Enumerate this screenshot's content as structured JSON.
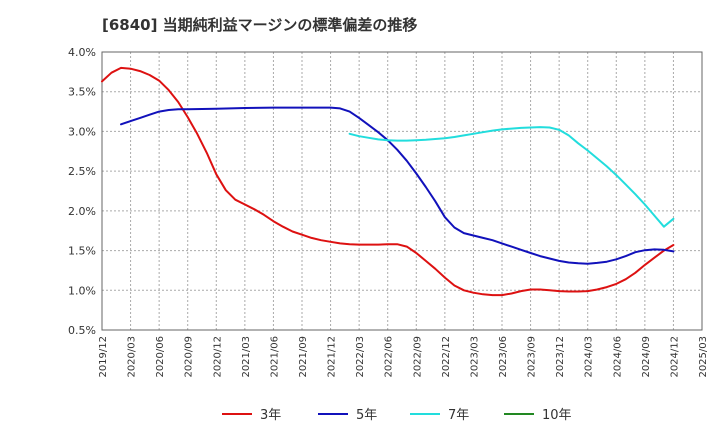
{
  "chart_data": {
    "type": "line",
    "title": "[6840]  当期純利益マージンの標準偏差の推移",
    "xlabel": "",
    "ylabel": "",
    "y_unit": "%",
    "ylim": [
      0.5,
      4.0
    ],
    "y_ticks": [
      0.5,
      1.0,
      1.5,
      2.0,
      2.5,
      3.0,
      3.5,
      4.0
    ],
    "y_tick_labels": [
      "0.5%",
      "1.0%",
      "1.5%",
      "2.0%",
      "2.5%",
      "3.0%",
      "3.5%",
      "4.0%"
    ],
    "x_ticks": [
      "2019/12",
      "2020/03",
      "2020/06",
      "2020/09",
      "2020/12",
      "2021/03",
      "2021/06",
      "2021/09",
      "2021/12",
      "2022/03",
      "2022/06",
      "2022/09",
      "2022/12",
      "2023/03",
      "2023/06",
      "2023/09",
      "2023/12",
      "2024/03",
      "2024/06",
      "2024/09",
      "2024/12",
      "2025/03"
    ],
    "grid": true,
    "legend_position": "bottom",
    "series": [
      {
        "name": "3年",
        "color": "#dd1111",
        "points": [
          [
            "2019/12",
            3.63
          ],
          [
            "2020/01",
            3.74
          ],
          [
            "2020/02",
            3.8
          ],
          [
            "2020/03",
            3.79
          ],
          [
            "2020/04",
            3.76
          ],
          [
            "2020/05",
            3.71
          ],
          [
            "2020/06",
            3.64
          ],
          [
            "2020/07",
            3.52
          ],
          [
            "2020/08",
            3.37
          ],
          [
            "2020/09",
            3.18
          ],
          [
            "2020/10",
            2.97
          ],
          [
            "2020/11",
            2.73
          ],
          [
            "2020/12",
            2.46
          ],
          [
            "2021/01",
            2.26
          ],
          [
            "2021/02",
            2.14
          ],
          [
            "2021/03",
            2.08
          ],
          [
            "2021/04",
            2.02
          ],
          [
            "2021/05",
            1.95
          ],
          [
            "2021/06",
            1.87
          ],
          [
            "2021/07",
            1.8
          ],
          [
            "2021/08",
            1.74
          ],
          [
            "2021/09",
            1.7
          ],
          [
            "2021/10",
            1.66
          ],
          [
            "2021/11",
            1.63
          ],
          [
            "2021/12",
            1.61
          ],
          [
            "2022/01",
            1.59
          ],
          [
            "2022/02",
            1.58
          ],
          [
            "2022/03",
            1.575
          ],
          [
            "2022/04",
            1.575
          ],
          [
            "2022/05",
            1.575
          ],
          [
            "2022/06",
            1.58
          ],
          [
            "2022/07",
            1.58
          ],
          [
            "2022/08",
            1.55
          ],
          [
            "2022/09",
            1.47
          ],
          [
            "2022/10",
            1.37
          ],
          [
            "2022/11",
            1.27
          ],
          [
            "2022/12",
            1.16
          ],
          [
            "2023/01",
            1.06
          ],
          [
            "2023/02",
            1.0
          ],
          [
            "2023/03",
            0.97
          ],
          [
            "2023/04",
            0.95
          ],
          [
            "2023/05",
            0.94
          ],
          [
            "2023/06",
            0.94
          ],
          [
            "2023/07",
            0.96
          ],
          [
            "2023/08",
            0.99
          ],
          [
            "2023/09",
            1.01
          ],
          [
            "2023/10",
            1.01
          ],
          [
            "2023/11",
            1.0
          ],
          [
            "2023/12",
            0.99
          ],
          [
            "2024/01",
            0.985
          ],
          [
            "2024/02",
            0.985
          ],
          [
            "2024/03",
            0.99
          ],
          [
            "2024/04",
            1.01
          ],
          [
            "2024/05",
            1.04
          ],
          [
            "2024/06",
            1.08
          ],
          [
            "2024/07",
            1.14
          ],
          [
            "2024/08",
            1.22
          ],
          [
            "2024/09",
            1.32
          ],
          [
            "2024/10",
            1.41
          ],
          [
            "2024/11",
            1.5
          ],
          [
            "2024/12",
            1.57
          ]
        ]
      },
      {
        "name": "5年",
        "color": "#1111bb",
        "points": [
          [
            "2020/02",
            3.09
          ],
          [
            "2020/03",
            3.13
          ],
          [
            "2020/04",
            3.17
          ],
          [
            "2020/05",
            3.21
          ],
          [
            "2020/06",
            3.25
          ],
          [
            "2020/07",
            3.27
          ],
          [
            "2020/08",
            3.28
          ],
          [
            "2020/09",
            3.28
          ],
          [
            "2020/12",
            3.285
          ],
          [
            "2021/03",
            3.295
          ],
          [
            "2021/06",
            3.3
          ],
          [
            "2021/09",
            3.3
          ],
          [
            "2021/12",
            3.3
          ],
          [
            "2022/01",
            3.29
          ],
          [
            "2022/02",
            3.25
          ],
          [
            "2022/03",
            3.17
          ],
          [
            "2022/04",
            3.08
          ],
          [
            "2022/05",
            2.99
          ],
          [
            "2022/06",
            2.89
          ],
          [
            "2022/07",
            2.77
          ],
          [
            "2022/08",
            2.63
          ],
          [
            "2022/09",
            2.47
          ],
          [
            "2022/10",
            2.3
          ],
          [
            "2022/11",
            2.12
          ],
          [
            "2022/12",
            1.92
          ],
          [
            "2023/01",
            1.79
          ],
          [
            "2023/02",
            1.72
          ],
          [
            "2023/03",
            1.69
          ],
          [
            "2023/04",
            1.66
          ],
          [
            "2023/05",
            1.63
          ],
          [
            "2023/06",
            1.59
          ],
          [
            "2023/07",
            1.55
          ],
          [
            "2023/08",
            1.51
          ],
          [
            "2023/09",
            1.47
          ],
          [
            "2023/10",
            1.43
          ],
          [
            "2023/11",
            1.4
          ],
          [
            "2023/12",
            1.37
          ],
          [
            "2024/01",
            1.35
          ],
          [
            "2024/02",
            1.34
          ],
          [
            "2024/03",
            1.335
          ],
          [
            "2024/04",
            1.345
          ],
          [
            "2024/05",
            1.36
          ],
          [
            "2024/06",
            1.39
          ],
          [
            "2024/07",
            1.43
          ],
          [
            "2024/08",
            1.48
          ],
          [
            "2024/09",
            1.505
          ],
          [
            "2024/10",
            1.515
          ],
          [
            "2024/11",
            1.51
          ],
          [
            "2024/12",
            1.49
          ]
        ]
      },
      {
        "name": "7年",
        "color": "#22dddd",
        "points": [
          [
            "2022/02",
            2.97
          ],
          [
            "2022/03",
            2.94
          ],
          [
            "2022/04",
            2.92
          ],
          [
            "2022/05",
            2.9
          ],
          [
            "2022/06",
            2.89
          ],
          [
            "2022/07",
            2.885
          ],
          [
            "2022/08",
            2.885
          ],
          [
            "2022/09",
            2.89
          ],
          [
            "2022/10",
            2.895
          ],
          [
            "2022/11",
            2.905
          ],
          [
            "2022/12",
            2.915
          ],
          [
            "2023/01",
            2.93
          ],
          [
            "2023/02",
            2.95
          ],
          [
            "2023/03",
            2.97
          ],
          [
            "2023/04",
            2.99
          ],
          [
            "2023/05",
            3.01
          ],
          [
            "2023/06",
            3.025
          ],
          [
            "2023/07",
            3.035
          ],
          [
            "2023/08",
            3.045
          ],
          [
            "2023/09",
            3.05
          ],
          [
            "2023/10",
            3.055
          ],
          [
            "2023/11",
            3.05
          ],
          [
            "2023/12",
            3.02
          ],
          [
            "2024/01",
            2.95
          ],
          [
            "2024/02",
            2.85
          ],
          [
            "2024/03",
            2.76
          ],
          [
            "2024/04",
            2.66
          ],
          [
            "2024/05",
            2.56
          ],
          [
            "2024/06",
            2.45
          ],
          [
            "2024/07",
            2.33
          ],
          [
            "2024/08",
            2.21
          ],
          [
            "2024/09",
            2.08
          ],
          [
            "2024/10",
            1.94
          ],
          [
            "2024/11",
            1.8
          ],
          [
            "2024/12",
            1.9
          ]
        ]
      },
      {
        "name": "10年",
        "color": "#228822",
        "points": []
      }
    ]
  }
}
